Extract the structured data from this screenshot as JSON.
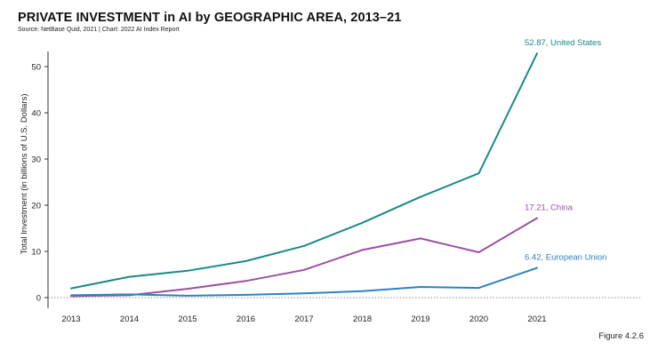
{
  "header": {
    "title": "PRIVATE INVESTMENT in AI by GEOGRAPHIC AREA, 2013–21",
    "source": "Source: NetBase Quid, 2021 | Chart: 2022 AI Index Report"
  },
  "footer": {
    "figure": "Figure 4.2.6"
  },
  "chart_data": {
    "type": "line",
    "title": "PRIVATE INVESTMENT in AI by GEOGRAPHIC AREA, 2013–21",
    "xlabel": "",
    "ylabel": "Total Investment (in billions of U.S. Dollars)",
    "categories": [
      "2013",
      "2014",
      "2015",
      "2016",
      "2017",
      "2018",
      "2019",
      "2020",
      "2021"
    ],
    "yticks": [
      0,
      10,
      20,
      30,
      40,
      50
    ],
    "ylim": [
      -1,
      55
    ],
    "grid": false,
    "zero_line": "dotted",
    "series": [
      {
        "name": "United States",
        "color": "#1a8a87",
        "values": [
          2.0,
          4.5,
          5.8,
          7.9,
          11.2,
          16.2,
          21.8,
          26.9,
          52.87
        ],
        "label": "52.87, United States"
      },
      {
        "name": "China",
        "color": "#9b50a4",
        "values": [
          0.3,
          0.5,
          1.9,
          3.6,
          6.0,
          10.3,
          12.8,
          9.8,
          17.21
        ],
        "label": "17.21, China"
      },
      {
        "name": "European Union",
        "color": "#2f82c1",
        "values": [
          0.5,
          0.7,
          0.4,
          0.6,
          0.9,
          1.4,
          2.3,
          2.1,
          6.42
        ],
        "label": "6.42, European Union"
      }
    ]
  }
}
